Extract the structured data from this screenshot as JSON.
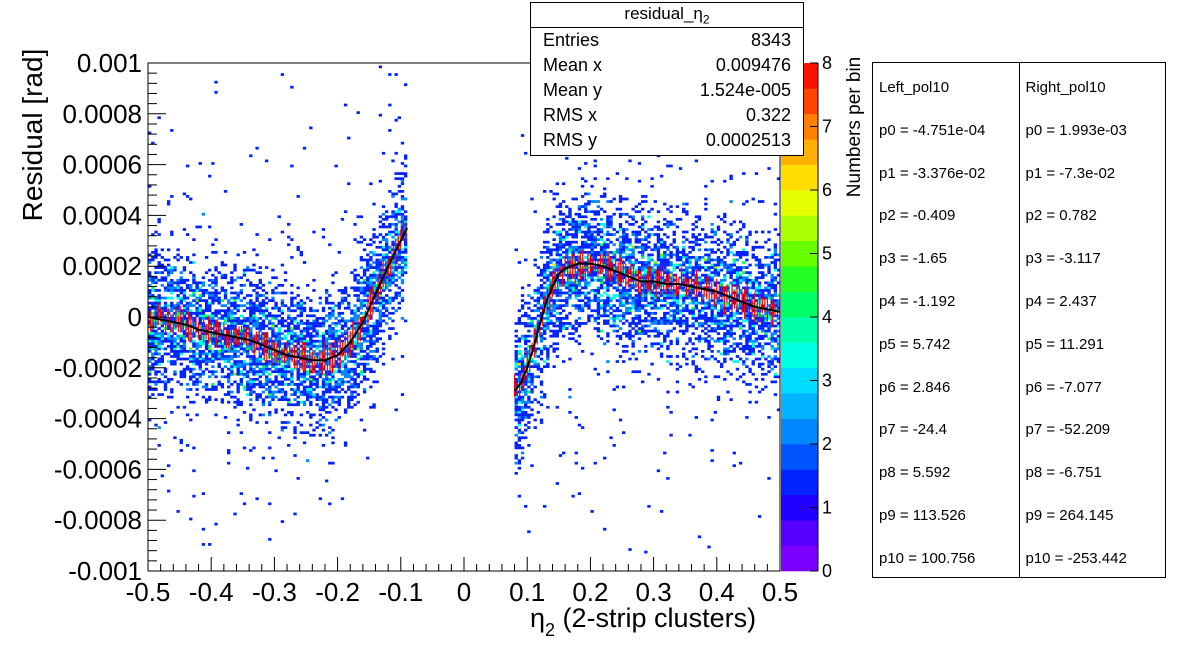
{
  "stats_box": {
    "title": "residual_",
    "title_sym": "η",
    "title_sub": "2",
    "rows": [
      {
        "label": "Entries",
        "value": "8343"
      },
      {
        "label": "Mean x",
        "value": "0.009476"
      },
      {
        "label": "Mean y",
        "value": "1.524e-005"
      },
      {
        "label": "RMS x",
        "value": "0.322"
      },
      {
        "label": "RMS y",
        "value": "0.0002513"
      }
    ]
  },
  "fit_params": {
    "left": {
      "header": "Left_pol10",
      "values": [
        "p0 = -4.751e-04",
        "p1 = -3.376e-02",
        "p2 = -0.409",
        "p3 = -1.65",
        "p4 = -1.192",
        "p5 = 5.742",
        "p6 = 2.846",
        "p7 = -24.4",
        "p8 = 5.592",
        "p9 = 113.526",
        "p10 = 100.756"
      ]
    },
    "right": {
      "header": "Right_pol10",
      "values": [
        "p0 = 1.993e-03",
        "p1 = -7.3e-02",
        "p2 = 0.782",
        "p3 = -3.117",
        "p4 = 2.437",
        "p5 = 11.291",
        "p6 = -7.077",
        "p7 = -52.209",
        "p8 = -6.751",
        "p9 = 264.145",
        "p10 = -253.442"
      ]
    }
  },
  "chart_data": {
    "type": "heatmap",
    "title": "residual_η2",
    "xlabel_sym": "η",
    "xlabel_sub": "2",
    "xlabel_rest": " (2-strip clusters)",
    "ylabel": "Residual [rad]",
    "zlabel": "Numbers per bin",
    "xlim": [
      -0.5,
      0.5
    ],
    "ylim": [
      -0.001,
      0.001
    ],
    "zlim": [
      0,
      8
    ],
    "x_ticks": [
      "-0.5",
      "-0.4",
      "-0.3",
      "-0.2",
      "-0.1",
      "0",
      "0.1",
      "0.2",
      "0.3",
      "0.4",
      "0.5"
    ],
    "y_ticks": [
      "-0.001",
      "-0.0008",
      "-0.0006",
      "-0.0004",
      "-0.0002",
      "0",
      "0.0002",
      "0.0004",
      "0.0006",
      "0.0008",
      "0.001"
    ],
    "z_ticks": [
      "0",
      "1",
      "2",
      "3",
      "4",
      "5",
      "6",
      "7",
      "8"
    ],
    "palette": [
      "#7b00ff",
      "#5500ff",
      "#2200ff",
      "#0022ff",
      "#0055ff",
      "#0088ff",
      "#00b4ff",
      "#00dcff",
      "#00ffe0",
      "#00ffaa",
      "#00ff66",
      "#22ff22",
      "#66ff00",
      "#aaff00",
      "#e6ff00",
      "#ffdd00",
      "#ffb000",
      "#ff8000",
      "#ff4400",
      "#ff1100"
    ],
    "fit_curve_color": "#000000",
    "profile_color": "#ff0000",
    "left_fit": {
      "x": [
        -0.5,
        -0.48,
        -0.46,
        -0.44,
        -0.42,
        -0.4,
        -0.38,
        -0.36,
        -0.34,
        -0.32,
        -0.3,
        -0.28,
        -0.26,
        -0.24,
        -0.22,
        -0.2,
        -0.18,
        -0.16,
        -0.14,
        -0.12,
        -0.1,
        -0.09
      ],
      "y": [
        0.0,
        -1e-05,
        -2e-05,
        -3e-05,
        -5e-05,
        -6e-05,
        -7e-05,
        -8e-05,
        -9e-05,
        -0.00011,
        -0.00013,
        -0.00015,
        -0.00016,
        -0.00017,
        -0.00017,
        -0.00015,
        -0.0001,
        -2e-05,
        9e-05,
        0.0002,
        0.0003,
        0.00035
      ]
    },
    "right_fit": {
      "x": [
        0.08,
        0.09,
        0.1,
        0.11,
        0.12,
        0.13,
        0.14,
        0.15,
        0.16,
        0.18,
        0.2,
        0.22,
        0.24,
        0.26,
        0.28,
        0.3,
        0.32,
        0.34,
        0.36,
        0.38,
        0.4,
        0.42,
        0.44,
        0.46,
        0.48,
        0.5
      ],
      "y": [
        -0.00029,
        -0.00026,
        -0.0002,
        -0.00012,
        -3e-05,
        6e-05,
        0.00012,
        0.00017,
        0.00019,
        0.00021,
        0.00021,
        0.0002,
        0.00018,
        0.00016,
        0.00014,
        0.00014,
        0.00013,
        0.00013,
        0.00012,
        0.00011,
        0.0001,
        8e-05,
        6e-05,
        4e-05,
        3e-05,
        2e-05
      ]
    },
    "regions": [
      {
        "x": [
          -0.5,
          -0.09
        ],
        "center_from": "left_fit",
        "spread": 0.00013
      },
      {
        "x": [
          0.08,
          0.5
        ],
        "center_from": "right_fit",
        "spread": 0.00014
      }
    ]
  }
}
